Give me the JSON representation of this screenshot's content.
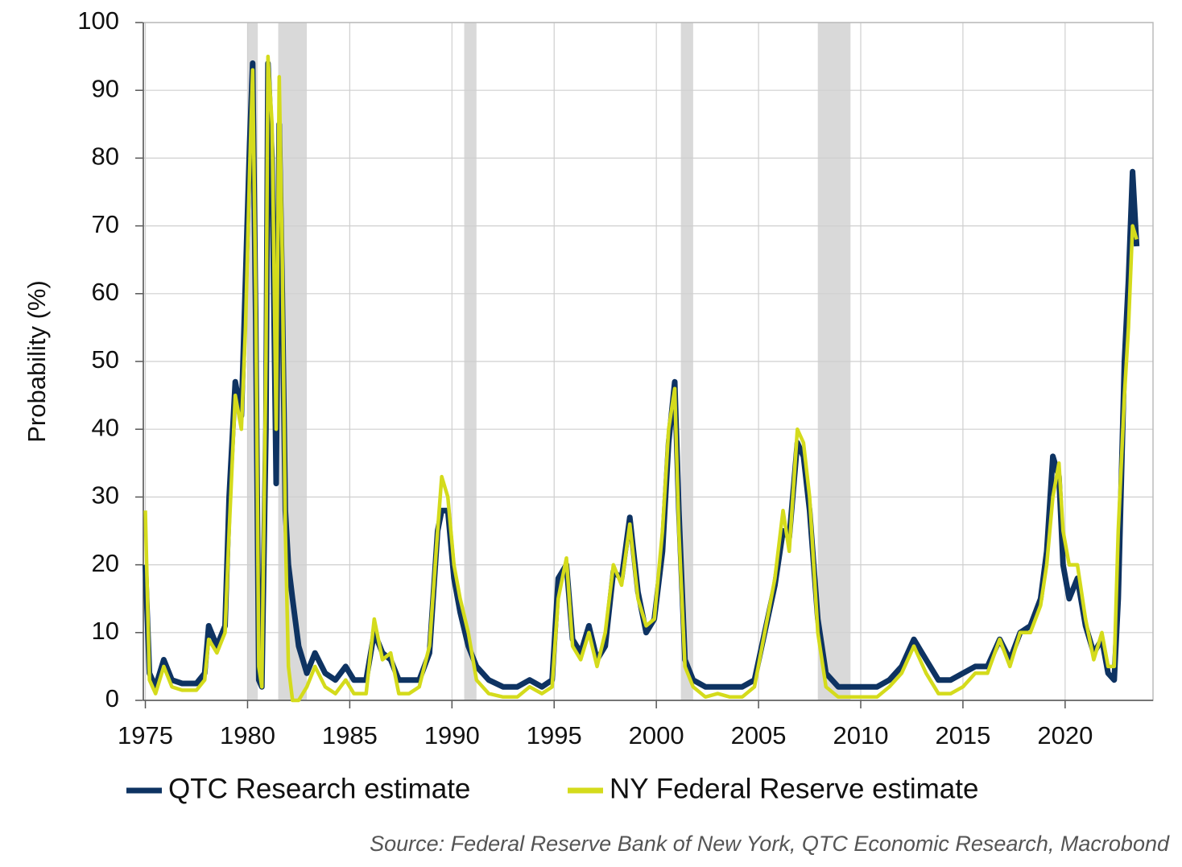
{
  "chart_data": {
    "type": "line",
    "y_label": "Probability (%)",
    "source": "Source: Federal Reserve Bank of New York, QTC Economic Research, Macrobond",
    "xlim": [
      1974.9,
      2024.3
    ],
    "ylim": [
      0,
      100
    ],
    "xticks": [
      1975,
      1980,
      1985,
      1990,
      1995,
      2000,
      2005,
      2010,
      2015,
      2020
    ],
    "yticks": [
      0,
      10,
      20,
      30,
      40,
      50,
      60,
      70,
      80,
      90,
      100
    ],
    "grid": true,
    "recession_color": "#d9d9d9",
    "recessions": [
      [
        1980.0,
        1980.5
      ],
      [
        1981.5,
        1982.9
      ],
      [
        1990.6,
        1991.2
      ],
      [
        2001.2,
        2001.8
      ],
      [
        2007.9,
        2009.5
      ]
    ],
    "x": [
      1975.0,
      1975.2,
      1975.5,
      1975.9,
      1976.3,
      1976.8,
      1977.5,
      1977.9,
      1978.1,
      1978.5,
      1978.9,
      1979.1,
      1979.4,
      1979.7,
      1979.9,
      1980.1,
      1980.25,
      1980.4,
      1980.55,
      1980.7,
      1980.9,
      1981.0,
      1981.2,
      1981.4,
      1981.55,
      1981.7,
      1981.85,
      1982.0,
      1982.2,
      1982.5,
      1982.9,
      1983.3,
      1983.8,
      1984.3,
      1984.8,
      1985.2,
      1985.8,
      1986.2,
      1986.6,
      1987.0,
      1987.4,
      1987.9,
      1988.4,
      1988.9,
      1989.3,
      1989.5,
      1989.8,
      1990.1,
      1990.4,
      1990.8,
      1991.2,
      1991.8,
      1992.5,
      1993.2,
      1993.8,
      1994.4,
      1994.9,
      1995.2,
      1995.6,
      1995.9,
      1996.3,
      1996.7,
      1997.1,
      1997.5,
      1997.9,
      1998.3,
      1998.7,
      1999.1,
      1999.5,
      1999.9,
      2000.3,
      2000.6,
      2000.9,
      2001.1,
      2001.4,
      2001.8,
      2002.4,
      2003.0,
      2003.6,
      2004.2,
      2004.8,
      2005.3,
      2005.8,
      2006.2,
      2006.5,
      2006.9,
      2007.2,
      2007.5,
      2007.9,
      2008.3,
      2008.9,
      2009.5,
      2010.2,
      2010.8,
      2011.4,
      2012.0,
      2012.6,
      2013.2,
      2013.8,
      2014.4,
      2015.0,
      2015.6,
      2016.2,
      2016.8,
      2017.3,
      2017.8,
      2018.3,
      2018.8,
      2019.1,
      2019.4,
      2019.7,
      2019.9,
      2020.2,
      2020.6,
      2021.0,
      2021.4,
      2021.8,
      2022.1,
      2022.4,
      2022.6,
      2022.9,
      2023.1,
      2023.3,
      2023.5
    ],
    "series": [
      {
        "name": "QTC Research estimate",
        "color": "#0e3362",
        "values": [
          20,
          4,
          2,
          6,
          3,
          2.5,
          2.5,
          4,
          11,
          8,
          11,
          30,
          47,
          42,
          62,
          82,
          94,
          56,
          3,
          2,
          40,
          94,
          80,
          32,
          85,
          60,
          28,
          20,
          15,
          8,
          4,
          7,
          4,
          3,
          5,
          3,
          3,
          10,
          7,
          6,
          3,
          3,
          3,
          7,
          25,
          28,
          28,
          18,
          13,
          8,
          5,
          3,
          2,
          2,
          3,
          2,
          3,
          18,
          20,
          9,
          7,
          11,
          6,
          8,
          19,
          18,
          27,
          16,
          10,
          12,
          22,
          38,
          47,
          28,
          6,
          3,
          2,
          2,
          2,
          2,
          3,
          10,
          17,
          25,
          24,
          38,
          36,
          28,
          12,
          4,
          2,
          2,
          2,
          2,
          3,
          5,
          9,
          6,
          3,
          3,
          4,
          5,
          5,
          9,
          6,
          10,
          11,
          15,
          22,
          36,
          33,
          20,
          15,
          18,
          11,
          7,
          9,
          4,
          3,
          15,
          50,
          62,
          78,
          67
        ]
      },
      {
        "name": "NY Federal Reserve estimate",
        "color": "#d4db1c",
        "values": [
          28,
          3,
          1,
          5,
          2,
          1.5,
          1.5,
          3,
          9,
          7,
          10,
          25,
          45,
          40,
          55,
          78,
          93,
          60,
          5,
          2,
          50,
          95,
          85,
          40,
          92,
          65,
          25,
          5,
          0,
          0,
          2,
          5,
          2,
          1,
          3,
          1,
          1,
          12,
          6,
          7,
          1,
          1,
          2,
          8,
          25,
          33,
          30,
          20,
          15,
          10,
          3,
          1,
          0.5,
          0.5,
          2,
          1,
          2,
          15,
          21,
          8,
          6,
          10,
          5,
          10,
          20,
          17,
          26,
          15,
          11,
          12,
          25,
          40,
          46,
          25,
          5,
          2,
          0.5,
          1,
          0.5,
          0.5,
          2,
          10,
          18,
          28,
          22,
          40,
          38,
          30,
          10,
          2,
          0.5,
          0.5,
          0.5,
          0.5,
          2,
          4,
          8,
          4,
          1,
          1,
          2,
          4,
          4,
          9,
          5,
          10,
          10,
          14,
          20,
          30,
          35,
          25,
          20,
          20,
          12,
          6,
          10,
          5,
          5,
          25,
          45,
          55,
          70,
          68
        ]
      }
    ]
  }
}
